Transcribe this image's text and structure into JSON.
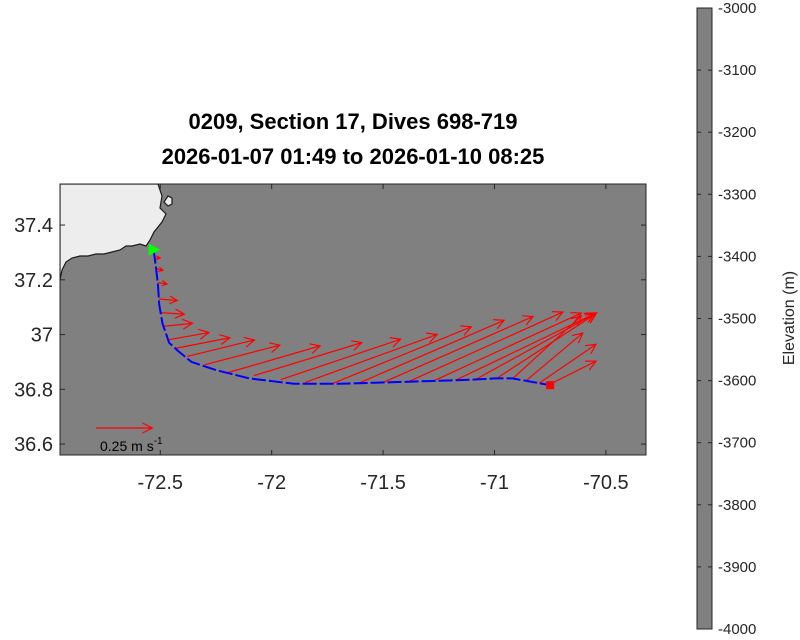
{
  "chart_data": {
    "type": "quiver",
    "title": "0209, Section 17, Dives 698-719",
    "subtitle": "2026-01-07 01:49 to 2026-01-10 08:25",
    "xlim": [
      -72.95,
      -70.32
    ],
    "ylim": [
      36.56,
      37.55
    ],
    "xticks": [
      -72.5,
      -72,
      -71.5,
      -71,
      -70.5
    ],
    "xtick_labels": [
      "-72.5",
      "-72",
      "-71.5",
      "-71",
      "-70.5"
    ],
    "yticks": [
      36.6,
      36.8,
      37,
      37.2,
      37.4
    ],
    "ytick_labels": [
      "36.6",
      "36.8",
      "37",
      "37.2",
      "37.4"
    ],
    "background_color": "#808080",
    "land_color": "#ededed",
    "track_color": "#0000ff",
    "arrow_color": "#ff0000",
    "start_marker_color": "#00ff00",
    "end_marker_color": "#ff0000",
    "scale_arrow": {
      "label": "0.25 m s",
      "label_exponent": "-1",
      "speed": 0.25
    },
    "track": [
      [
        -72.53,
        37.31
      ],
      [
        -72.52,
        37.25
      ],
      [
        -72.51,
        37.18
      ],
      [
        -72.505,
        37.11
      ],
      [
        -72.49,
        37.04
      ],
      [
        -72.46,
        36.97
      ],
      [
        -72.42,
        36.94
      ],
      [
        -72.36,
        36.9
      ],
      [
        -72.25,
        36.87
      ],
      [
        -72.1,
        36.84
      ],
      [
        -71.9,
        36.82
      ],
      [
        -71.7,
        36.82
      ],
      [
        -71.5,
        36.825
      ],
      [
        -71.3,
        36.83
      ],
      [
        -71.1,
        36.835
      ],
      [
        -71.0,
        36.84
      ],
      [
        -70.92,
        36.84
      ],
      [
        -70.85,
        36.83
      ],
      [
        -70.75,
        36.815
      ]
    ],
    "vectors": [
      {
        "x": -72.52,
        "y": 37.28,
        "u": 0.03,
        "v": 0.0
      },
      {
        "x": -72.515,
        "y": 37.24,
        "u": 0.04,
        "v": -0.01
      },
      {
        "x": -72.51,
        "y": 37.19,
        "u": 0.06,
        "v": -0.01
      },
      {
        "x": -72.505,
        "y": 37.13,
        "u": 0.12,
        "v": -0.01
      },
      {
        "x": -72.5,
        "y": 37.08,
        "u": 0.16,
        "v": -0.01
      },
      {
        "x": -72.49,
        "y": 37.03,
        "u": 0.2,
        "v": 0.02
      },
      {
        "x": -72.47,
        "y": 36.98,
        "u": 0.28,
        "v": 0.05
      },
      {
        "x": -72.43,
        "y": 36.95,
        "u": 0.36,
        "v": 0.07
      },
      {
        "x": -72.38,
        "y": 36.92,
        "u": 0.45,
        "v": 0.11
      },
      {
        "x": -72.3,
        "y": 36.89,
        "u": 0.5,
        "v": 0.13
      },
      {
        "x": -72.2,
        "y": 36.86,
        "u": 0.62,
        "v": 0.18
      },
      {
        "x": -72.08,
        "y": 36.85,
        "u": 0.72,
        "v": 0.22
      },
      {
        "x": -71.96,
        "y": 36.835,
        "u": 0.8,
        "v": 0.27
      },
      {
        "x": -71.85,
        "y": 36.825,
        "u": 0.88,
        "v": 0.32
      },
      {
        "x": -71.73,
        "y": 36.82,
        "u": 0.93,
        "v": 0.38
      },
      {
        "x": -71.61,
        "y": 36.822,
        "u": 0.97,
        "v": 0.42
      },
      {
        "x": -71.5,
        "y": 36.825,
        "u": 1.0,
        "v": 0.44
      },
      {
        "x": -71.38,
        "y": 36.83,
        "u": 1.02,
        "v": 0.46
      },
      {
        "x": -71.27,
        "y": 36.832,
        "u": 0.98,
        "v": 0.45
      },
      {
        "x": -71.17,
        "y": 36.835,
        "u": 0.92,
        "v": 0.44
      },
      {
        "x": -71.08,
        "y": 36.838,
        "u": 0.8,
        "v": 0.44
      },
      {
        "x": -70.99,
        "y": 36.84,
        "u": 0.66,
        "v": 0.43
      },
      {
        "x": -70.92,
        "y": 36.838,
        "u": 0.46,
        "v": 0.42
      },
      {
        "x": -70.86,
        "y": 36.83,
        "u": 0.38,
        "v": 0.32
      },
      {
        "x": -70.8,
        "y": 36.822,
        "u": 0.38,
        "v": 0.26
      },
      {
        "x": -70.76,
        "y": 36.815,
        "u": 0.32,
        "v": 0.16
      }
    ],
    "colorbar": {
      "label": "Elevation (m)",
      "range": [
        -4000,
        -3000
      ],
      "ticks": [
        -3000,
        -3100,
        -3200,
        -3300,
        -3400,
        -3500,
        -3600,
        -3700,
        -3800,
        -3900,
        -4000
      ],
      "tick_labels": [
        "-3000",
        "-3100",
        "-3200",
        "-3300",
        "-3400",
        "-3500",
        "-3600",
        "-3700",
        "-3800",
        "-3900",
        "-4000"
      ]
    }
  }
}
